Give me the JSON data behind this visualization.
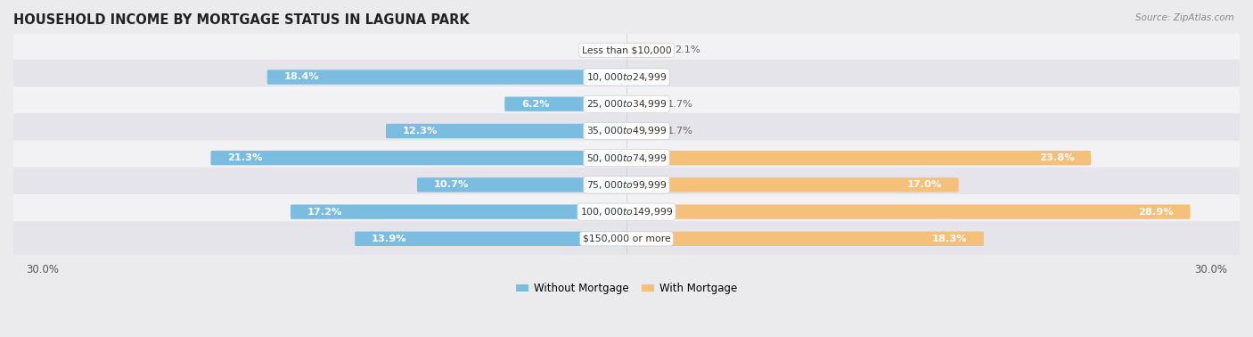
{
  "title": "HOUSEHOLD INCOME BY MORTGAGE STATUS IN LAGUNA PARK",
  "source": "Source: ZipAtlas.com",
  "categories": [
    "Less than $10,000",
    "$10,000 to $24,999",
    "$25,000 to $34,999",
    "$35,000 to $49,999",
    "$50,000 to $74,999",
    "$75,000 to $99,999",
    "$100,000 to $149,999",
    "$150,000 or more"
  ],
  "without_mortgage": [
    0.0,
    18.4,
    6.2,
    12.3,
    21.3,
    10.7,
    17.2,
    13.9
  ],
  "with_mortgage": [
    2.1,
    0.0,
    1.7,
    1.7,
    23.8,
    17.0,
    28.9,
    18.3
  ],
  "xlim": 30.0,
  "color_without": "#7BBDE0",
  "color_with": "#F5C07A",
  "bg_color": "#ebebee",
  "row_bg_light": "#f2f2f5",
  "row_bg_dark": "#e4e4ea",
  "title_fontsize": 10.5,
  "label_fontsize": 8.2,
  "cat_fontsize": 7.8,
  "bar_height": 0.42,
  "legend_label_without": "Without Mortgage",
  "legend_label_with": "With Mortgage"
}
